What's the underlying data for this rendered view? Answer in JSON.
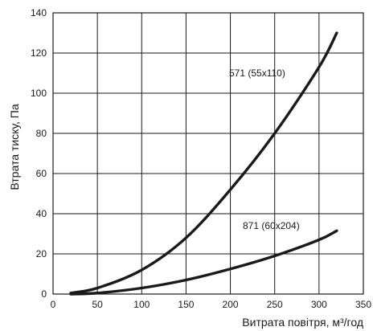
{
  "chart_data": {
    "type": "line",
    "title": "",
    "xlabel": "Витрата повітря, м³/год",
    "ylabel": "Втрата тиску, Па",
    "xlim": [
      0,
      350
    ],
    "ylim": [
      0,
      140
    ],
    "x_ticks": [
      0,
      50,
      100,
      150,
      200,
      250,
      300,
      350
    ],
    "y_ticks": [
      0,
      20,
      40,
      60,
      80,
      100,
      120,
      140
    ],
    "grid": true,
    "legend": "none",
    "series": [
      {
        "name": "571 (55x110)",
        "color": "#1a1a1a",
        "x": [
          20,
          50,
          100,
          150,
          200,
          250,
          300,
          320
        ],
        "y": [
          0.5,
          3,
          12,
          28,
          52,
          80,
          113,
          130
        ]
      },
      {
        "name": "871 (60x204)",
        "color": "#1a1a1a",
        "x": [
          20,
          50,
          100,
          150,
          200,
          250,
          300,
          320
        ],
        "y": [
          0,
          0.5,
          3,
          7,
          12.5,
          19,
          27,
          31.5
        ]
      }
    ]
  },
  "colors": {
    "background": "#ffffff",
    "grid": "#1a1a1a",
    "frame": "#1a1a1a"
  }
}
